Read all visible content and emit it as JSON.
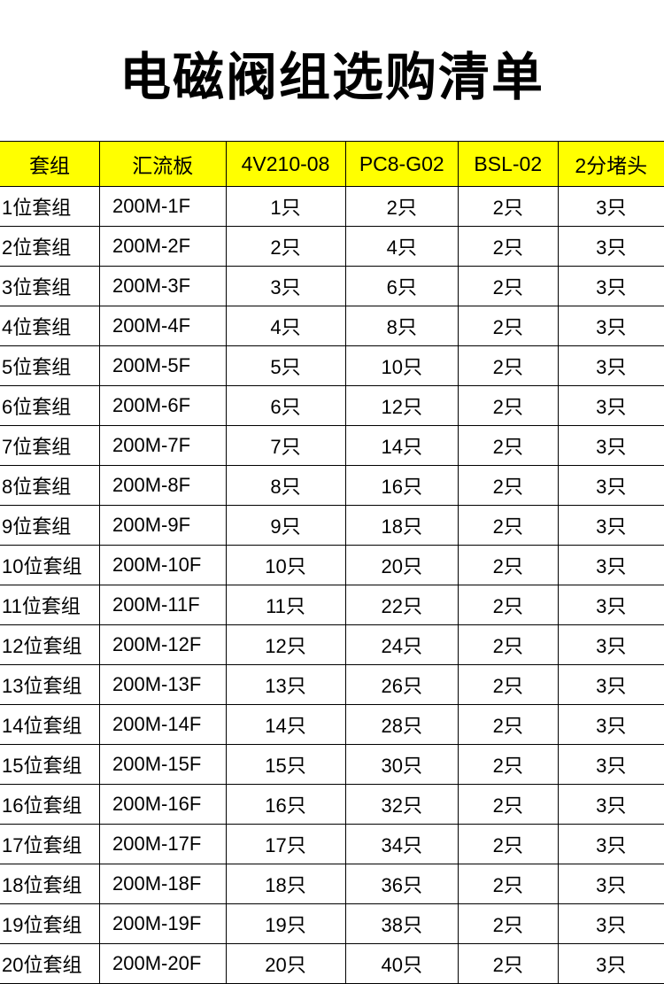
{
  "title": "电磁阀组选购清单",
  "table": {
    "header_bg": "#ffff00",
    "border_color": "#000000",
    "columns": [
      "套组",
      "汇流板",
      "4V210-08",
      "PC8-G02",
      "BSL-02",
      "2分堵头"
    ],
    "rows": [
      [
        "1位套组",
        "200M-1F",
        "1只",
        "2只",
        "2只",
        "3只"
      ],
      [
        "2位套组",
        "200M-2F",
        "2只",
        "4只",
        "2只",
        "3只"
      ],
      [
        "3位套组",
        "200M-3F",
        "3只",
        "6只",
        "2只",
        "3只"
      ],
      [
        "4位套组",
        "200M-4F",
        "4只",
        "8只",
        "2只",
        "3只"
      ],
      [
        "5位套组",
        "200M-5F",
        "5只",
        "10只",
        "2只",
        "3只"
      ],
      [
        "6位套组",
        "200M-6F",
        "6只",
        "12只",
        "2只",
        "3只"
      ],
      [
        "7位套组",
        "200M-7F",
        "7只",
        "14只",
        "2只",
        "3只"
      ],
      [
        "8位套组",
        "200M-8F",
        "8只",
        "16只",
        "2只",
        "3只"
      ],
      [
        "9位套组",
        "200M-9F",
        "9只",
        "18只",
        "2只",
        "3只"
      ],
      [
        "10位套组",
        "200M-10F",
        "10只",
        "20只",
        "2只",
        "3只"
      ],
      [
        "11位套组",
        "200M-11F",
        "11只",
        "22只",
        "2只",
        "3只"
      ],
      [
        "12位套组",
        "200M-12F",
        "12只",
        "24只",
        "2只",
        "3只"
      ],
      [
        "13位套组",
        "200M-13F",
        "13只",
        "26只",
        "2只",
        "3只"
      ],
      [
        "14位套组",
        "200M-14F",
        "14只",
        "28只",
        "2只",
        "3只"
      ],
      [
        "15位套组",
        "200M-15F",
        "15只",
        "30只",
        "2只",
        "3只"
      ],
      [
        "16位套组",
        "200M-16F",
        "16只",
        "32只",
        "2只",
        "3只"
      ],
      [
        "17位套组",
        "200M-17F",
        "17只",
        "34只",
        "2只",
        "3只"
      ],
      [
        "18位套组",
        "200M-18F",
        "18只",
        "36只",
        "2只",
        "3只"
      ],
      [
        "19位套组",
        "200M-19F",
        "19只",
        "38只",
        "2只",
        "3只"
      ],
      [
        "20位套组",
        "200M-20F",
        "20只",
        "40只",
        "2只",
        "3只"
      ]
    ]
  }
}
